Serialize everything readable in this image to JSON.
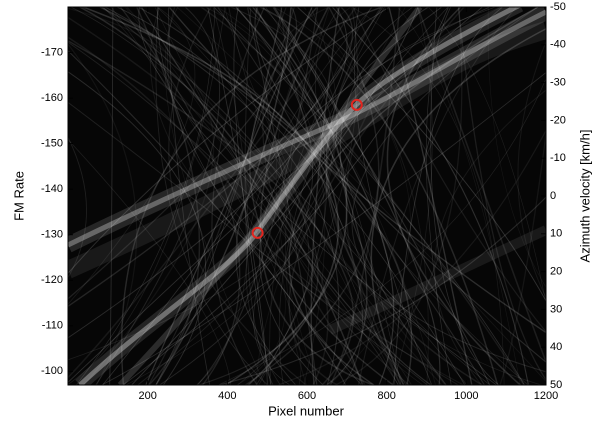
{
  "chart_data": {
    "type": "scatter",
    "xlabel": "Pixel number",
    "ylabel": "FM Rate",
    "y2label": "Azimuth velocity [km/h]",
    "xlim": [
      0,
      1200
    ],
    "xticks": [
      200,
      400,
      600,
      800,
      1000,
      1200
    ],
    "ylim": [
      -97,
      -180
    ],
    "yticks": [
      -170,
      -160,
      -150,
      -140,
      -130,
      -120,
      -110,
      -100
    ],
    "y2lim": [
      50,
      -50
    ],
    "y2ticks": [
      -50,
      -40,
      -30,
      -20,
      -10,
      0,
      10,
      20,
      30,
      40,
      50
    ],
    "series": [
      {
        "color": "#e3261f",
        "x": [
          476,
          725
        ],
        "values": [
          -130.4,
          -158.5
        ]
      }
    ]
  }
}
